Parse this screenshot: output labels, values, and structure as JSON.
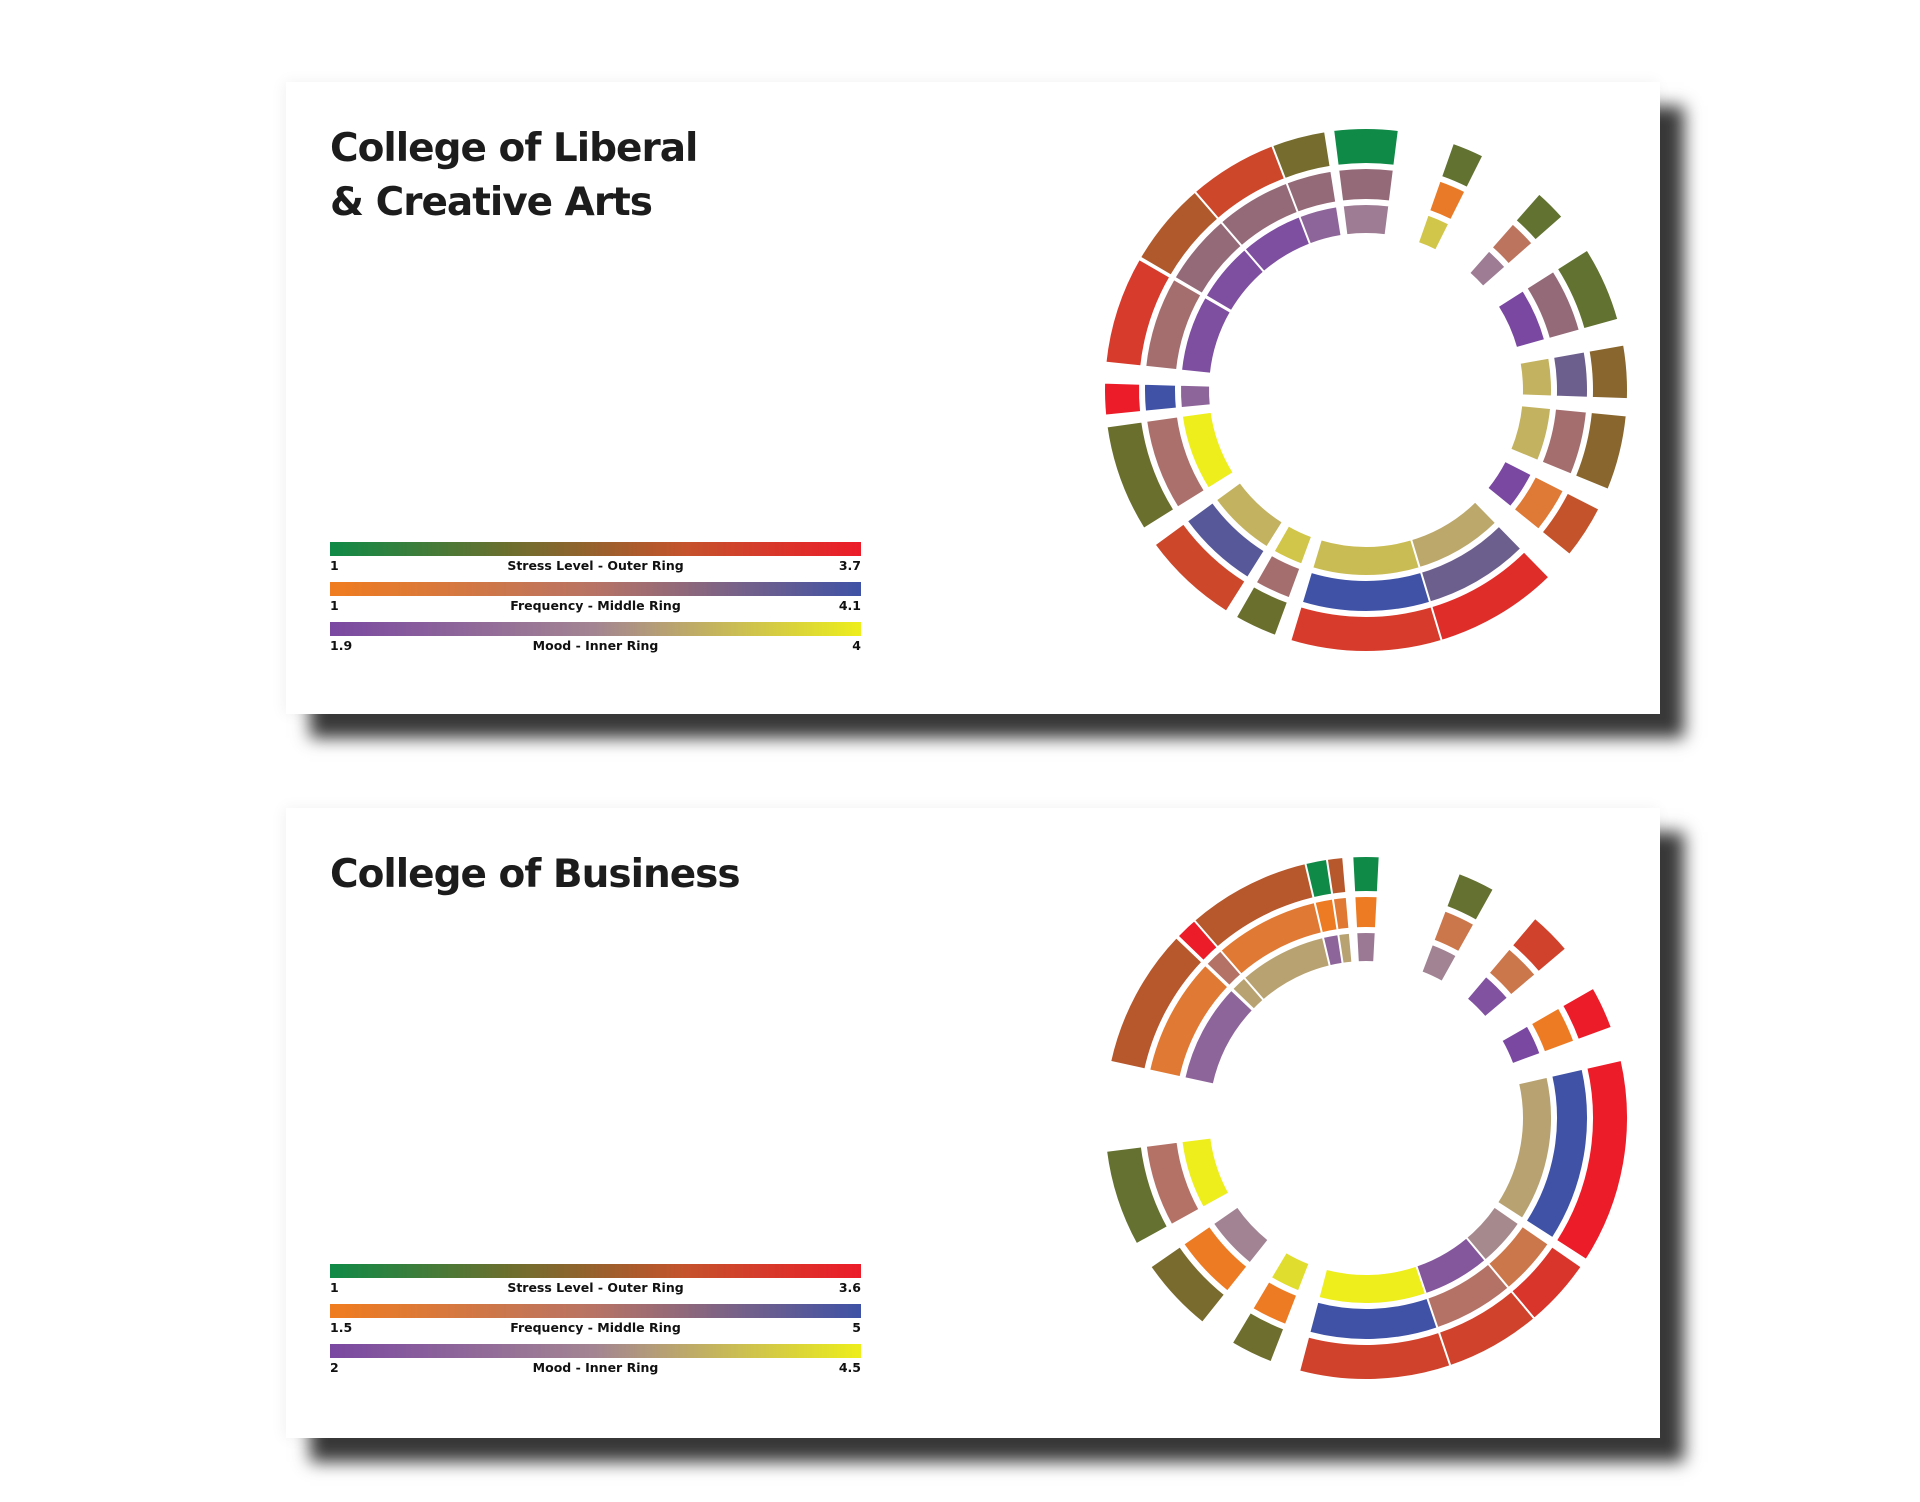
{
  "colors": {
    "stress": [
      "#108a47",
      "#6b6f2e",
      "#c4532c",
      "#ec1c29"
    ],
    "frequency": [
      "#f07c1f",
      "#b77365",
      "#3f52a6"
    ],
    "mood": [
      "#7a48a1",
      "#a38592",
      "#edee1c"
    ]
  },
  "panels": [
    {
      "title_line1": "College of Liberal",
      "title_line2": "& Creative Arts",
      "legend": [
        {
          "label": "Stress Level - Outer Ring",
          "min": "1",
          "max": "3.7"
        },
        {
          "label": "Frequency - Middle Ring",
          "min": "1",
          "max": "4.1"
        },
        {
          "label": "Mood - Inner Ring",
          "min": "1.9",
          "max": "4"
        }
      ]
    },
    {
      "title_line1": "College of Business",
      "title_line2": "",
      "legend": [
        {
          "label": "Stress Level - Outer Ring",
          "min": "1",
          "max": "3.6"
        },
        {
          "label": "Frequency - Middle Ring",
          "min": "1.5",
          "max": "5"
        },
        {
          "label": "Mood - Inner Ring",
          "min": "2",
          "max": "4.5"
        }
      ]
    }
  ],
  "chart_data": [
    {
      "type": "radial-bar",
      "title": "College of Liberal & Creative Arts",
      "rings": [
        "Stress Level - Outer Ring",
        "Frequency - Middle Ring",
        "Mood - Inner Ring"
      ],
      "scales": {
        "stress": [
          1,
          3.7
        ],
        "frequency": [
          1,
          4.1
        ],
        "mood": [
          1.9,
          4
        ]
      },
      "segments": [
        {
          "angle": 0,
          "width": 0.12,
          "stress": 1.0,
          "frequency": 3.0,
          "mood": 2.8
        },
        {
          "angle": 23,
          "width": 0.06,
          "stress": 1.8,
          "frequency": 1.2,
          "mood": 3.6
        },
        {
          "angle": 45,
          "width": 0.06,
          "stress": 1.8,
          "frequency": 2.4,
          "mood": 2.8
        },
        {
          "angle": 66,
          "width": 0.14,
          "stress": 1.8,
          "frequency": 3.0,
          "mood": 1.9
        },
        {
          "angle": 86,
          "width": 0.1,
          "stress": 2.2,
          "frequency": 3.5,
          "mood": 3.4
        },
        {
          "angle": 104,
          "width": 0.14,
          "stress": 2.2,
          "frequency": 2.8,
          "mood": 3.4
        },
        {
          "angle": 123,
          "width": 0.1,
          "stress": 2.8,
          "frequency": 1.5,
          "mood": 1.9
        },
        {
          "angle": 150,
          "width": 0.24,
          "stress": 3.4,
          "frequency": 3.5,
          "mood": 3.3
        },
        {
          "angle": 180,
          "width": 0.28,
          "stress": 3.2,
          "frequency": 4.1,
          "mood": 3.5
        },
        {
          "angle": 205,
          "width": 0.08,
          "stress": 1.9,
          "frequency": 2.8,
          "mood": 3.6
        },
        {
          "angle": 223,
          "width": 0.18,
          "stress": 3.0,
          "frequency": 3.8,
          "mood": 3.4
        },
        {
          "angle": 250,
          "width": 0.2,
          "stress": 1.9,
          "frequency": 2.7,
          "mood": 4.0
        },
        {
          "angle": 268,
          "width": 0.06,
          "stress": 3.7,
          "frequency": 4.1,
          "mood": 2.4
        },
        {
          "angle": 288,
          "width": 0.2,
          "stress": 3.2,
          "frequency": 2.8,
          "mood": 2.0
        },
        {
          "angle": 310,
          "width": 0.16,
          "stress": 2.6,
          "frequency": 3.0,
          "mood": 2.0
        },
        {
          "angle": 330,
          "width": 0.18,
          "stress": 3.0,
          "frequency": 3.0,
          "mood": 2.0
        },
        {
          "angle": 345,
          "width": 0.1,
          "stress": 2.0,
          "frequency": 3.0,
          "mood": 2.4
        }
      ]
    },
    {
      "type": "radial-bar",
      "title": "College of Business",
      "rings": [
        "Stress Level - Outer Ring",
        "Frequency - Middle Ring",
        "Mood - Inner Ring"
      ],
      "scales": {
        "stress": [
          1,
          3.6
        ],
        "frequency": [
          1.5,
          5
        ],
        "mood": [
          2,
          4.5
        ]
      },
      "segments": [
        {
          "angle": 0,
          "width": 0.05,
          "stress": 1.0,
          "frequency": 1.6,
          "mood": 3.0
        },
        {
          "angle": 25,
          "width": 0.07,
          "stress": 1.8,
          "frequency": 2.6,
          "mood": 3.2
        },
        {
          "angle": 45,
          "width": 0.08,
          "stress": 3.0,
          "frequency": 2.6,
          "mood": 2.2
        },
        {
          "angle": 65,
          "width": 0.08,
          "stress": 3.6,
          "frequency": 1.6,
          "mood": 2.0
        },
        {
          "angle": 100,
          "width": 0.38,
          "stress": 3.6,
          "frequency": 5.0,
          "mood": 3.6
        },
        {
          "angle": 133,
          "width": 0.14,
          "stress": 3.2,
          "frequency": 2.6,
          "mood": 3.3
        },
        {
          "angle": 152,
          "width": 0.2,
          "stress": 3.0,
          "frequency": 3.3,
          "mood": 2.3
        },
        {
          "angle": 178,
          "width": 0.28,
          "stress": 3.0,
          "frequency": 5.0,
          "mood": 4.5
        },
        {
          "angle": 206,
          "width": 0.08,
          "stress": 1.9,
          "frequency": 1.6,
          "mood": 4.3
        },
        {
          "angle": 227,
          "width": 0.14,
          "stress": 2.0,
          "frequency": 1.6,
          "mood": 3.2
        },
        {
          "angle": 252,
          "width": 0.18,
          "stress": 1.8,
          "frequency": 3.3,
          "mood": 4.5
        },
        {
          "angle": 298,
          "width": 0.26,
          "stress": 2.6,
          "frequency": 2.0,
          "mood": 2.6
        },
        {
          "angle": 320,
          "width": 0.1,
          "stress": 3.6,
          "frequency": 3.3,
          "mood": 3.6
        },
        {
          "angle": 337,
          "width": 0.3,
          "stress": 2.6,
          "frequency": 2.0,
          "mood": 3.6
        },
        {
          "angle": 349,
          "width": 0.04,
          "stress": 1.0,
          "frequency": 1.6,
          "mood": 2.6
        }
      ]
    }
  ]
}
